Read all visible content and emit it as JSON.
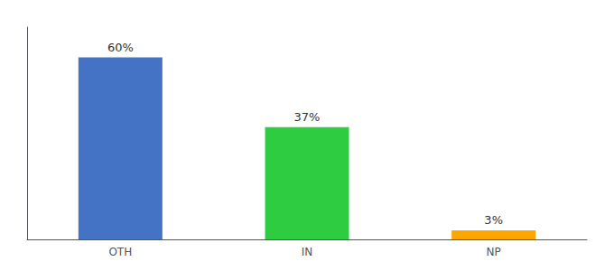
{
  "chart_data": {
    "type": "bar",
    "categories": [
      "OTH",
      "IN",
      "NP"
    ],
    "values": [
      60,
      37,
      3
    ],
    "value_labels": [
      "60%",
      "37%",
      "3%"
    ],
    "data_labels": true,
    "colors": [
      "#4472C4",
      "#2ECC40",
      "#FFA500"
    ],
    "ylim": [
      0,
      70
    ],
    "grid": false,
    "tick_labels": "x"
  }
}
